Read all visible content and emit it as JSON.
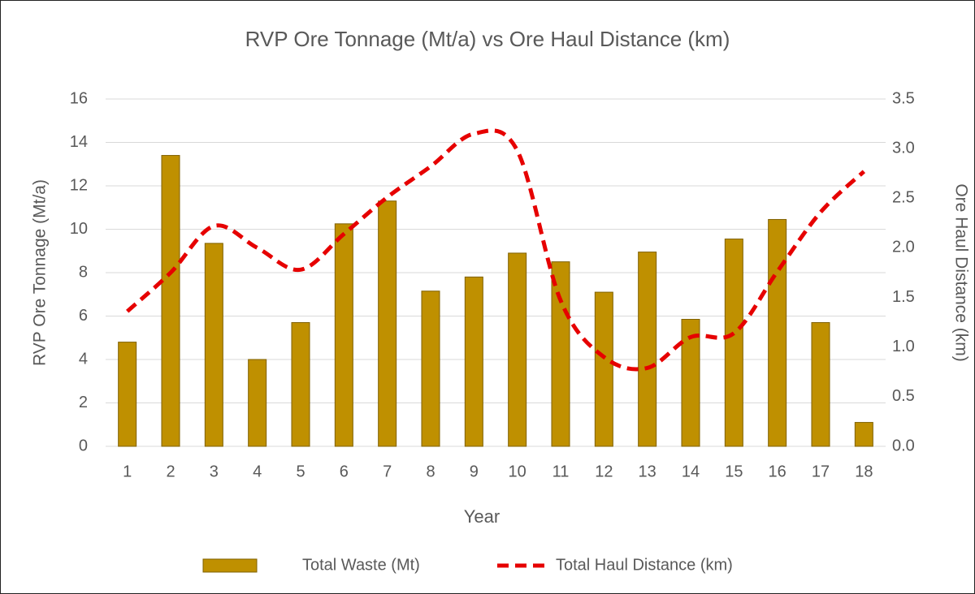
{
  "chart_data": {
    "type": "bar_line",
    "title": "RVP Ore Tonnage (Mt/a) vs Ore Haul Distance (km)",
    "x_label": "Year",
    "y_label": "RVP Ore Tonnage (Mt/a)",
    "y2_label": "Ore Haul Distance (km)",
    "categories": [
      "1",
      "2",
      "3",
      "4",
      "5",
      "6",
      "7",
      "8",
      "9",
      "10",
      "11",
      "12",
      "13",
      "14",
      "15",
      "16",
      "17",
      "18"
    ],
    "series": [
      {
        "name": "Total Waste (Mt)",
        "type": "bar",
        "color": "#bf9000",
        "values": [
          4.8,
          13.4,
          9.35,
          4.0,
          5.7,
          10.25,
          11.3,
          7.15,
          7.8,
          8.9,
          8.5,
          7.1,
          8.95,
          5.85,
          9.55,
          10.45,
          5.7,
          1.1
        ]
      },
      {
        "name": "Total Haul Distance (km)",
        "type": "line",
        "axis": "y2",
        "color": "#e60000",
        "values": [
          1.36,
          1.75,
          2.22,
          2.0,
          1.78,
          2.14,
          2.51,
          2.82,
          3.15,
          2.98,
          1.47,
          0.9,
          0.79,
          1.1,
          1.14,
          1.76,
          2.36,
          2.77
        ]
      }
    ],
    "ylim": [
      0,
      16
    ],
    "yticks": [
      0,
      2,
      4,
      6,
      8,
      10,
      12,
      14,
      16
    ],
    "y2lim": [
      0,
      3.5
    ],
    "y2ticks": [
      {
        "value": 0,
        "label": "0.0"
      },
      {
        "value": 0.5,
        "label": "0.5"
      },
      {
        "value": 1,
        "label": "1.0"
      },
      {
        "value": 1.5,
        "label": "1.5"
      },
      {
        "value": 2,
        "label": "2.0"
      },
      {
        "value": 2.5,
        "label": "2.5"
      },
      {
        "value": 3,
        "label": "3.0"
      },
      {
        "value": 3.5,
        "label": "3.5"
      }
    ],
    "grid": true,
    "legend": "bottom"
  }
}
